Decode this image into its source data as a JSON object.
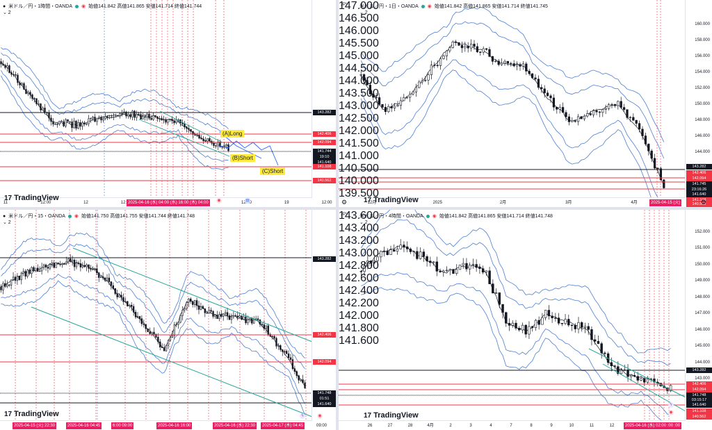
{
  "currency_label": "JPY",
  "logo_text": "TradingView",
  "collapse_label": "⌄ 2",
  "panes": [
    {
      "id": "h1",
      "title": "米ドル／円・1時間・OANDA",
      "ohlc": "始値141.842 高値141.865 安値141.714 終値141.744",
      "x_labels": [
        "11",
        "12:00",
        "12",
        "12:00",
        "15",
        "18",
        "12:00",
        "19",
        "12:00"
      ],
      "chip": "2025-04-16 (水) 04:00 (水) 16:00 (木) 04:00",
      "price_labels": [
        "143.282",
        "142.406",
        "142.094",
        "141.744",
        "19:10",
        "141.640",
        "141.108",
        "140.562"
      ],
      "annotations": [
        "(A)Long",
        "(B)Short",
        "(C)Short"
      ]
    },
    {
      "id": "d1",
      "title": "米ドル／円・1日・OANDA",
      "ohlc": "始値141.842 高値141.865 安値141.714 終値141.745",
      "y_ticks": [
        "147.000",
        "146.500",
        "146.000",
        "145.500",
        "145.000",
        "144.500",
        "144.000",
        "143.500",
        "143.000",
        "142.500",
        "142.000",
        "141.500",
        "141.000",
        "140.500",
        "140.000",
        "139.500"
      ],
      "y_ticks_right": [
        "160.000",
        "158.000",
        "156.000",
        "154.000",
        "152.000",
        "150.000",
        "148.000",
        "146.000",
        "144.000",
        "142.000",
        "140.000",
        "138.000"
      ],
      "x_labels": [
        "12月",
        "2025",
        "2月",
        "3月",
        "4月"
      ],
      "chip": "2025-04-15 (火)",
      "price_labels": [
        "143.282",
        "142.406",
        "142.094",
        "141.745",
        "23:16:26",
        "141.640",
        "141.108",
        "140.562"
      ]
    },
    {
      "id": "m15",
      "title": "米ドル／円・15・OANDA",
      "ohlc": "始値141.750 高値141.755 安値141.744 終値141.748",
      "y_ticks": [],
      "chips": [
        "2025-04-15 (火) 22:30",
        "2025-04-16 04:45",
        "6:00 09:00",
        "2025-04-16 16:00",
        "2025-04-16 (水) 22:30",
        "2025-04-17 (木) 04:45",
        "09:00"
      ],
      "price_labels": [
        "143.282",
        "142.406",
        "142.094",
        "141.748",
        "01:51",
        "141.640"
      ]
    },
    {
      "id": "h4",
      "title": "米ドル／円・4時間・OANDA",
      "ohlc": "始値141.842 高値141.865 安値141.714 終値141.748",
      "y_ticks": [
        "143.600",
        "143.400",
        "143.200",
        "143.000",
        "142.800",
        "142.600",
        "142.400",
        "142.200",
        "142.000",
        "141.800",
        "141.600"
      ],
      "y_ticks_right": [
        "152.000",
        "151.000",
        "150.000",
        "149.000",
        "148.000",
        "147.000",
        "146.000",
        "145.000",
        "144.000",
        "143.000",
        "142.000",
        "141.000"
      ],
      "x_labels": [
        "26",
        "27",
        "28",
        "4月",
        "2",
        "3",
        "4",
        "7",
        "8",
        "9",
        "10",
        "11",
        "12"
      ],
      "chip": "2025-04-16 (水) 02:00 :00 :00",
      "price_labels": [
        "143.282",
        "142.406",
        "142.094",
        "141.748",
        "03:15:17",
        "141.640",
        "141.108",
        "140.562"
      ]
    }
  ],
  "colors": {
    "up": "#ffffff",
    "down": "#131722",
    "band": "#4a7fd4",
    "mid": "#131722",
    "red_line": "#f23645",
    "black_line": "#131722",
    "channel": "#26a69a",
    "chip": "#e91e63",
    "dashed": "#f23645"
  }
}
